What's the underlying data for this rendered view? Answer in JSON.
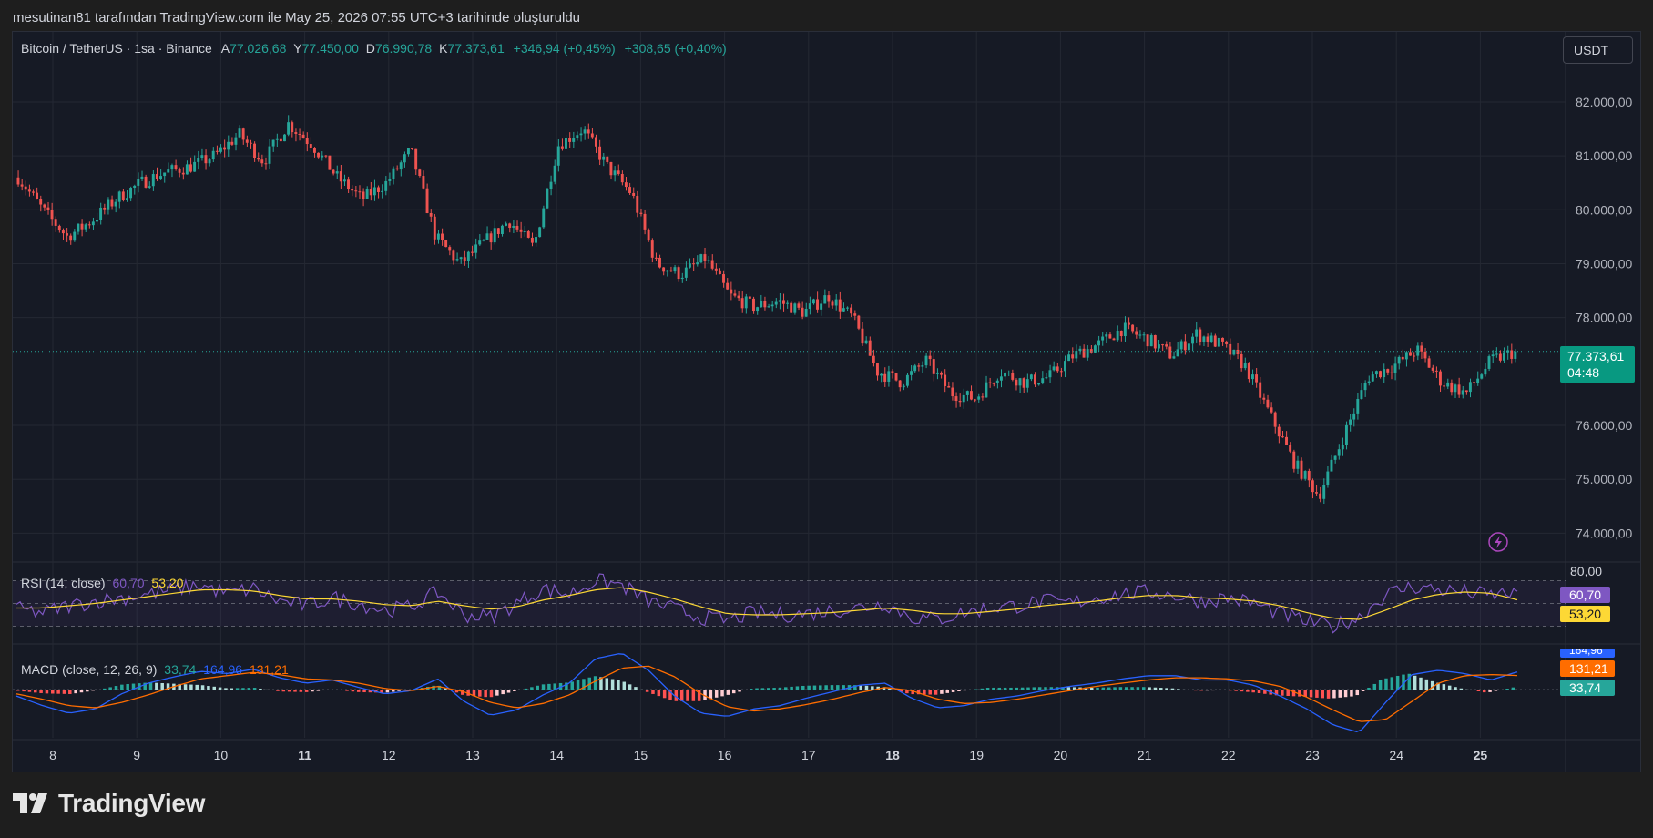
{
  "caption": "mesutinan81 tarafından TradingView.com ile May 25, 2026 07:55 UTC+3 tarihinde oluşturuldu",
  "brand": "TradingView",
  "currency_button": "USDT",
  "legend": {
    "symbol": "Bitcoin / TetherUS · 1sa · Binance",
    "open_label": "A",
    "open": "77.026,68",
    "high_label": "Y",
    "high": "77.450,00",
    "low_label": "D",
    "low": "76.990,78",
    "close_label": "K",
    "close": "77.373,61",
    "change": "+346,94 (+0,45%)",
    "change2": "+308,65 (+0,40%)"
  },
  "last_price": {
    "price": "77.373,61",
    "countdown": "04:48"
  },
  "rsi": {
    "title": "RSI (14, close)",
    "value": "60,70",
    "ma": "53,20",
    "axis_top": "80,00"
  },
  "macd": {
    "title": "MACD (close, 12, 26, 9)",
    "hist": "33,74",
    "macd": "164,96",
    "signal": "131,21"
  },
  "colors": {
    "up": "#26a69a",
    "down": "#ef5350",
    "rsi": "#7e57c2",
    "rsi_ma": "#fdd835",
    "macd": "#2962ff",
    "signal": "#ff6d00",
    "bg": "#161a25"
  },
  "chart_data": [
    {
      "type": "candlestick",
      "title": "Bitcoin / TetherUS · 1sa · Binance",
      "x_ticks": [
        "8",
        "9",
        "10",
        "11",
        "12",
        "13",
        "14",
        "15",
        "16",
        "17",
        "18",
        "19",
        "20",
        "21",
        "22",
        "23",
        "24",
        "25"
      ],
      "y_ticks": [
        "82.000,00",
        "81.000,00",
        "80.000,00",
        "79.000,00",
        "78.000,00",
        "76.000,00",
        "75.000,00",
        "74.000,00"
      ],
      "ylim": [
        73500,
        83300
      ],
      "close_series": [
        80.6,
        80.0,
        79.5,
        79.8,
        80.2,
        80.5,
        80.7,
        80.8,
        81.0,
        81.4,
        80.9,
        81.6,
        81.2,
        80.6,
        80.2,
        80.5,
        81.1,
        79.5,
        79.0,
        79.4,
        79.8,
        79.3,
        81.2,
        81.5,
        80.8,
        80.3,
        79.0,
        78.8,
        79.1,
        78.4,
        78.2,
        78.3,
        78.1,
        78.4,
        78.0,
        77.0,
        76.8,
        77.2,
        76.6,
        76.5,
        77.0,
        76.8,
        76.9,
        77.3,
        77.5,
        77.8,
        77.6,
        77.3,
        77.7,
        77.5,
        77.1,
        76.2,
        75.3,
        74.7,
        75.8,
        76.9,
        77.1,
        77.4,
        76.8,
        76.6,
        77.2,
        77.37
      ],
      "last": 77373.61
    },
    {
      "type": "line",
      "title": "RSI (14, close)",
      "series": [
        {
          "name": "RSI",
          "values": [
            45,
            42,
            48,
            52,
            55,
            58,
            62,
            66,
            59,
            63,
            52,
            48,
            55,
            50,
            44,
            47,
            60,
            40,
            38,
            50,
            63,
            58,
            70,
            66,
            52,
            45,
            38,
            35,
            42,
            40,
            41,
            44,
            46,
            50,
            38,
            36,
            42,
            46,
            48,
            52,
            50,
            55,
            58,
            60,
            57,
            52,
            55,
            50,
            41,
            34,
            30,
            38,
            58,
            65,
            62,
            60,
            57,
            60.7
          ]
        },
        {
          "name": "MA",
          "values": [
            46,
            46,
            48,
            50,
            53,
            56,
            59,
            62,
            62,
            61,
            57,
            54,
            54,
            52,
            49,
            48,
            52,
            48,
            45,
            47,
            53,
            57,
            62,
            64,
            60,
            54,
            47,
            41,
            40,
            40,
            41,
            42,
            44,
            46,
            44,
            41,
            41,
            43,
            45,
            48,
            50,
            52,
            55,
            57,
            57,
            55,
            54,
            52,
            48,
            42,
            37,
            36,
            44,
            53,
            58,
            60,
            59,
            53.2
          ]
        }
      ],
      "ylim": [
        20,
        80
      ]
    },
    {
      "type": "line",
      "title": "MACD (close, 12, 26, 9)",
      "series": [
        {
          "name": "MACD",
          "values": [
            -60,
            -150,
            -220,
            -180,
            -40,
            60,
            120,
            170,
            150,
            190,
            110,
            60,
            90,
            20,
            -40,
            -10,
            100,
            -110,
            -240,
            -190,
            -50,
            60,
            290,
            340,
            180,
            -60,
            -220,
            -250,
            -180,
            -150,
            -80,
            -20,
            40,
            60,
            -80,
            -170,
            -150,
            -90,
            -60,
            -10,
            30,
            60,
            100,
            130,
            130,
            90,
            90,
            40,
            -60,
            -180,
            -330,
            -400,
            -120,
            140,
            180,
            150,
            90,
            164.96
          ]
        },
        {
          "name": "Signal",
          "values": [
            -40,
            -90,
            -150,
            -170,
            -120,
            -50,
            30,
            100,
            130,
            160,
            140,
            100,
            90,
            60,
            10,
            -10,
            30,
            -20,
            -120,
            -170,
            -130,
            -50,
            80,
            200,
            220,
            120,
            -40,
            -160,
            -200,
            -180,
            -140,
            -90,
            -30,
            20,
            -10,
            -90,
            -130,
            -120,
            -90,
            -50,
            -10,
            30,
            60,
            90,
            110,
            110,
            100,
            80,
            30,
            -70,
            -190,
            -300,
            -280,
            -110,
            60,
            130,
            140,
            131.21
          ]
        }
      ]
    }
  ]
}
